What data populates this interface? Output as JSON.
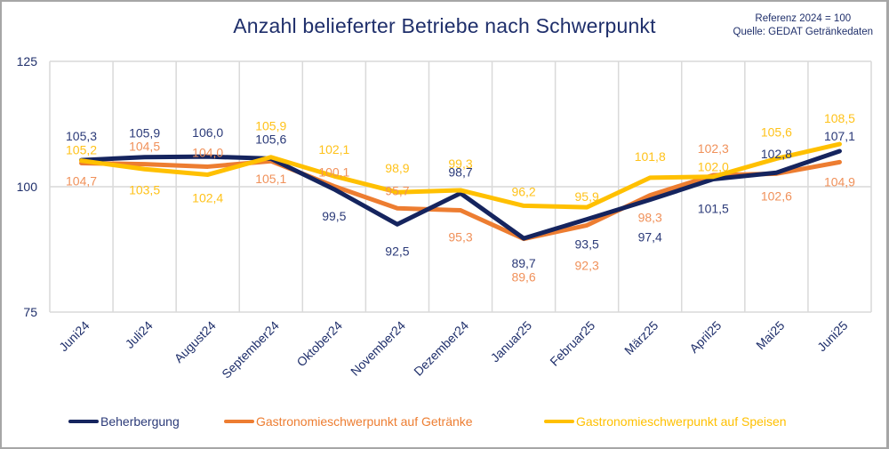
{
  "chart_data": {
    "type": "line",
    "title": "Anzahl belieferter Betriebe nach Schwerpunkt",
    "annotations": [
      "Referenz 2024 = 100",
      "Quelle: GEDAT Getränkedaten"
    ],
    "xlabel": "",
    "ylabel": "",
    "ylim": [
      75,
      125
    ],
    "yticks": [
      "125",
      "100",
      "75"
    ],
    "ytick_values": [
      125,
      100,
      75
    ],
    "grid": true,
    "legend_position": "bottom",
    "categories": [
      "Juni24",
      "Juli24",
      "August24",
      "September24",
      "Oktober24",
      "November24",
      "Dezember24",
      "Januar25",
      "Februar25",
      "März25",
      "April25",
      "Mai25",
      "Juni25"
    ],
    "series": [
      {
        "name": "Beherbergung",
        "color": "#15245e",
        "label_color": "#2b3a78",
        "values": [
          105.3,
          105.9,
          106.0,
          105.6,
          99.5,
          92.5,
          98.7,
          89.7,
          93.5,
          97.4,
          101.5,
          102.8,
          107.1
        ],
        "labels": [
          "105,3",
          "105,9",
          "106,0",
          "105,6",
          "99,5",
          "92,5",
          "98,7",
          "89,7",
          "93,5",
          "97,4",
          "101,5",
          "102,8",
          "107,1"
        ]
      },
      {
        "name": "Gastronomieschwerpunkt auf Getränke",
        "color": "#ed7d31",
        "label_color": "#f0915a",
        "values": [
          104.7,
          104.5,
          104.0,
          105.1,
          100.1,
          95.7,
          95.3,
          89.6,
          92.3,
          98.3,
          102.3,
          102.6,
          104.9
        ],
        "labels": [
          "104,7",
          "104,5",
          "104,0",
          "105,1",
          "100,1",
          "95,7",
          "95,3",
          "89,6",
          "92,3",
          "98,3",
          "102,3",
          "102,6",
          "104,9"
        ]
      },
      {
        "name": "Gastronomieschwerpunkt auf Speisen",
        "color": "#ffc000",
        "label_color": "#ffc21a",
        "values": [
          105.2,
          103.5,
          102.4,
          105.9,
          102.1,
          98.9,
          99.3,
          96.2,
          95.9,
          101.8,
          102.0,
          105.6,
          108.5
        ],
        "labels": [
          "105,2",
          "103,5",
          "102,4",
          "105,9",
          "102,1",
          "98,9",
          "99,3",
          "96,2",
          "95,9",
          "101,8",
          "102,0",
          "105,6",
          "108,5"
        ]
      }
    ],
    "data_label_offsets_note": "labels placed above or below each point as shown"
  }
}
